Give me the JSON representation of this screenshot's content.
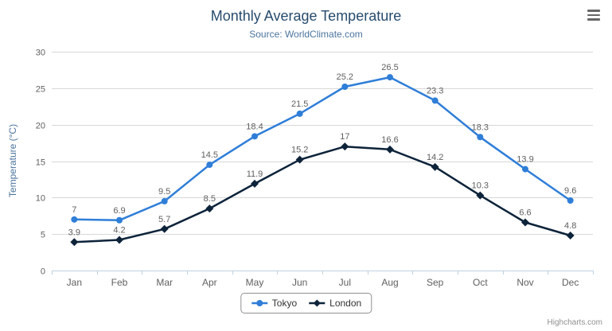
{
  "header": {
    "title": "Monthly Average Temperature",
    "subtitle": "Source: WorldClimate.com"
  },
  "credits": "Highcharts.com",
  "icons": {
    "menu": "hamburger-menu-icon"
  },
  "colors": {
    "title": "#274b6d",
    "subtitle": "#4d759e",
    "axis_title": "#4d759e",
    "tick_label": "#606060",
    "data_label": "#606060",
    "gridline": "#d8d8d8",
    "axis_line": "#c0d0e0",
    "legend_border": "#909090",
    "legend_text": "#333333",
    "credits_text": "#909090",
    "menu_icon": "#666666"
  },
  "chart_data": {
    "type": "line",
    "title": "Monthly Average Temperature",
    "subtitle": "Source: WorldClimate.com",
    "xlabel": "",
    "ylabel": "Temperature (°C)",
    "categories": [
      "Jan",
      "Feb",
      "Mar",
      "Apr",
      "May",
      "Jun",
      "Jul",
      "Aug",
      "Sep",
      "Oct",
      "Nov",
      "Dec"
    ],
    "series": [
      {
        "name": "Tokyo",
        "color": "#2f7ed8",
        "marker": "circle",
        "values": [
          7,
          6.9,
          9.5,
          14.5,
          18.4,
          21.5,
          25.2,
          26.5,
          23.3,
          18.3,
          13.9,
          9.6
        ]
      },
      {
        "name": "London",
        "color": "#0d233a",
        "marker": "diamond",
        "values": [
          3.9,
          4.2,
          5.7,
          8.5,
          11.9,
          15.2,
          17,
          16.6,
          14.2,
          10.3,
          6.6,
          4.8
        ]
      }
    ],
    "ylim": [
      0,
      30
    ],
    "ytick_interval": 5,
    "grid": true,
    "data_labels": true,
    "legend_position": "bottom"
  },
  "legend": {
    "items": [
      {
        "label": "Tokyo"
      },
      {
        "label": "London"
      }
    ]
  }
}
